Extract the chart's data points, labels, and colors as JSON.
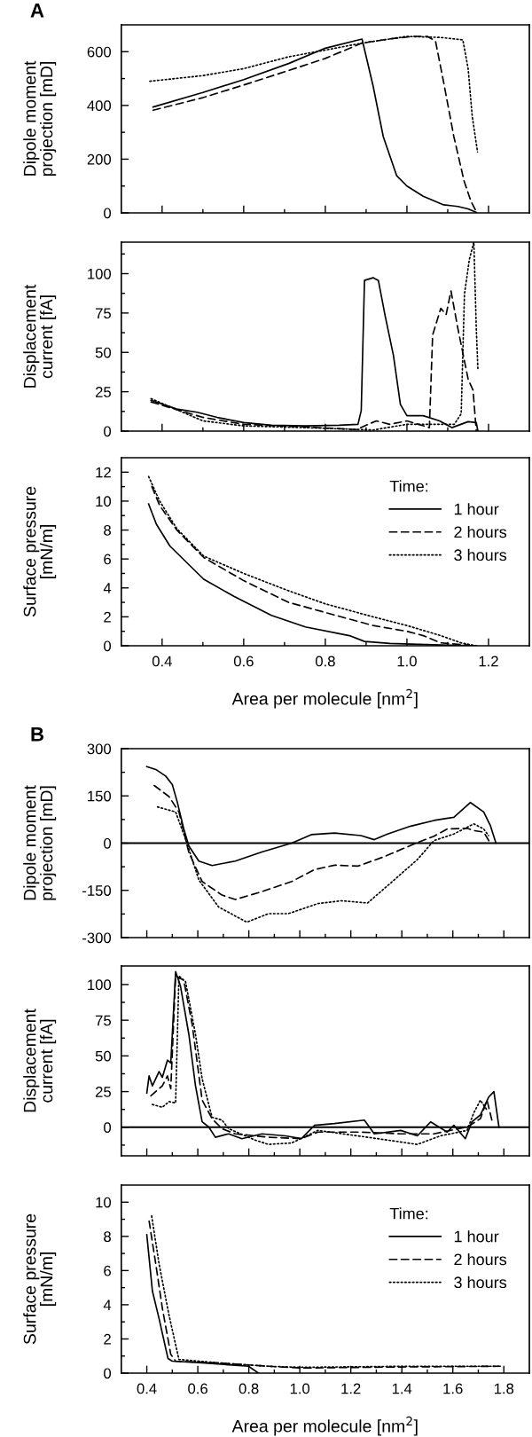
{
  "chart_data": [
    {
      "type": "line",
      "title": "A",
      "ylabel": "Dipole moment\nprojection [mD]",
      "xlim": [
        0.3,
        1.3
      ],
      "xticks": [
        0.4,
        {
          "value": 0.5,
          "label": null
        },
        0.6,
        {
          "value": 0.7,
          "label": null
        },
        0.8,
        {
          "value": 0.9,
          "label": null
        },
        1.0,
        {
          "value": 1.1,
          "label": null
        },
        1.2
      ],
      "ylim": [
        0,
        700
      ],
      "yticks": [
        0,
        {
          "value": 100,
          "label": null
        },
        200,
        {
          "value": 300,
          "label": null
        },
        400,
        {
          "value": 500,
          "label": null
        },
        600
      ],
      "tick_labels": "y",
      "grid": false,
      "legend": false,
      "series": [
        {
          "color": "#000000",
          "line_style": "solid",
          "x": [
            0.378,
            0.5,
            0.6,
            0.71,
            0.8,
            0.89,
            0.917,
            0.942,
            0.975,
            1.0,
            1.04,
            1.09,
            1.125,
            1.15,
            1.17
          ],
          "values": [
            394,
            448,
            496,
            556,
            613,
            647,
            473,
            284,
            138,
            100,
            62,
            30,
            24,
            15,
            2
          ]
        },
        {
          "color": "#000000",
          "line_style": "dashed",
          "x": [
            0.378,
            0.5,
            0.6,
            0.71,
            0.8,
            0.89,
            0.96,
            1.017,
            1.05,
            1.07,
            1.09,
            1.115,
            1.14,
            1.157,
            1.17
          ],
          "values": [
            382,
            429,
            476,
            530,
            575,
            632,
            648,
            657,
            657,
            640,
            486,
            284,
            119,
            43,
            5
          ]
        },
        {
          "color": "#000000",
          "line_style": "dotted",
          "x": [
            0.37,
            0.5,
            0.6,
            0.71,
            0.8,
            0.89,
            1.0,
            1.083,
            1.137,
            1.15,
            1.16,
            1.173
          ],
          "values": [
            490,
            511,
            537,
            581,
            606,
            632,
            657,
            653,
            644,
            537,
            360,
            227
          ]
        }
      ]
    },
    {
      "type": "line",
      "ylabel": "Displacement\ncurrent [fA]",
      "xlim": [
        0.3,
        1.3
      ],
      "xticks": [
        0.4,
        {
          "value": 0.5,
          "label": null
        },
        0.6,
        {
          "value": 0.7,
          "label": null
        },
        0.8,
        {
          "value": 0.9,
          "label": null
        },
        1.0,
        {
          "value": 1.1,
          "label": null
        },
        1.2
      ],
      "ylim": [
        0,
        120
      ],
      "yticks": [
        0,
        {
          "value": 12.5,
          "label": null
        },
        25,
        {
          "value": 37.5,
          "label": null
        },
        50,
        {
          "value": 62.5,
          "label": null
        },
        75,
        {
          "value": 87.5,
          "label": null
        },
        100,
        {
          "value": 112.5,
          "label": null
        }
      ],
      "tick_labels": "y",
      "grid": false,
      "legend": false,
      "series": [
        {
          "color": "#000000",
          "line_style": "solid",
          "x": [
            0.373,
            0.436,
            0.486,
            0.535,
            0.6,
            0.668,
            0.751,
            0.834,
            0.88,
            0.888,
            0.896,
            0.917,
            0.93,
            0.946,
            0.967,
            0.984,
            1.0,
            1.04,
            1.08,
            1.11,
            1.15,
            1.17,
            1.174
          ],
          "values": [
            19.6,
            14,
            12,
            8.7,
            5.4,
            3.7,
            3.3,
            3.7,
            4.3,
            13,
            95.7,
            97.4,
            95.7,
            74,
            48,
            17,
            9.8,
            9.8,
            6.5,
            2.2,
            6,
            5.4,
            0
          ]
        },
        {
          "color": "#000000",
          "line_style": "dashed",
          "x": [
            0.373,
            0.5,
            0.6,
            0.751,
            0.876,
            0.925,
            0.958,
            1.0,
            1.055,
            1.063,
            1.083,
            1.096,
            1.108,
            1.125,
            1.15,
            1.162,
            1.17
          ],
          "values": [
            18.5,
            8.7,
            4.3,
            2.6,
            1,
            6.5,
            4.3,
            6.5,
            2.2,
            61,
            78,
            74,
            89,
            65,
            33,
            26,
            0
          ]
        },
        {
          "color": "#000000",
          "line_style": "dotted",
          "x": [
            0.373,
            0.5,
            0.6,
            0.751,
            0.917,
            1.0,
            1.116,
            1.133,
            1.141,
            1.153,
            1.164,
            1.17,
            1.174
          ],
          "values": [
            20.6,
            6.5,
            3.3,
            2.2,
            0.7,
            4.3,
            4.3,
            11,
            87,
            109,
            120,
            65,
            39
          ]
        }
      ]
    },
    {
      "type": "line",
      "ylabel": "Surface pressure\n[mN/m]",
      "xlabel": "Area per molecule [nm$^{2}$]",
      "xlim": [
        0.3,
        1.3
      ],
      "xticks": [
        0.4,
        {
          "value": 0.5,
          "label": null
        },
        0.6,
        {
          "value": 0.7,
          "label": null
        },
        0.8,
        {
          "value": 0.9,
          "label": null
        },
        {
          "value": 1.0,
          "label": "1.0"
        },
        {
          "value": 1.1,
          "label": null
        },
        1.2
      ],
      "ylim": [
        0,
        13
      ],
      "yticks": [
        0,
        {
          "value": 1,
          "label": null
        },
        2,
        {
          "value": 3,
          "label": null
        },
        4,
        {
          "value": 5,
          "label": null
        },
        6,
        {
          "value": 7,
          "label": null
        },
        8,
        {
          "value": 9,
          "label": null
        },
        10,
        {
          "value": 11,
          "label": null
        },
        12
      ],
      "grid": false,
      "legend": "top right",
      "legend_title": "Time:",
      "series": [
        {
          "name": "1 hour",
          "color": "#000000",
          "line_style": "solid",
          "x": [
            0.367,
            0.386,
            0.419,
            0.502,
            0.577,
            0.668,
            0.751,
            0.859,
            0.896,
            0.958,
            1.083,
            1.17
          ],
          "values": [
            9.8,
            8.4,
            6.9,
            4.6,
            3.4,
            2.1,
            1.3,
            0.7,
            0.3,
            0.16,
            0.05,
            0
          ]
        },
        {
          "name": "2 hours",
          "color": "#000000",
          "line_style": "dashed",
          "x": [
            0.375,
            0.394,
            0.436,
            0.502,
            0.6,
            0.71,
            0.8,
            0.917,
            1.0,
            1.04,
            1.083,
            1.15
          ],
          "values": [
            11.0,
            9.7,
            8,
            6.1,
            4.5,
            3,
            2.3,
            1.4,
            1.0,
            0.7,
            0.2,
            0.05
          ]
        },
        {
          "name": "3 hours",
          "color": "#000000",
          "line_style": "dotted",
          "x": [
            0.367,
            0.394,
            0.436,
            0.502,
            0.6,
            0.71,
            0.8,
            0.917,
            1.0,
            1.083,
            1.133,
            1.17
          ],
          "values": [
            11.7,
            10,
            8.1,
            6.2,
            5,
            3.8,
            2.9,
            2.0,
            1.4,
            0.7,
            0.2,
            0
          ]
        }
      ]
    },
    {
      "type": "line",
      "title": "B",
      "ylabel": "Dipole moment\nprojection [mD]",
      "xlim": [
        0.3,
        1.9
      ],
      "xticks": [
        0.4,
        {
          "value": 0.5,
          "label": null
        },
        0.6,
        {
          "value": 0.7,
          "label": null
        },
        0.8,
        {
          "value": 0.9,
          "label": null
        },
        1.0,
        {
          "value": 1.1,
          "label": null
        },
        1.2,
        {
          "value": 1.3,
          "label": null
        },
        1.4,
        {
          "value": 1.5,
          "label": null
        },
        1.6,
        {
          "value": 1.7,
          "label": null
        },
        1.8
      ],
      "ylim": [
        -300,
        300
      ],
      "yticks": [
        -300,
        {
          "value": -225,
          "label": null
        },
        -150,
        {
          "value": -75,
          "label": null
        },
        0,
        {
          "value": 75,
          "label": null
        },
        150,
        {
          "value": 225,
          "label": null
        },
        300
      ],
      "tick_labels": "y",
      "grid": false,
      "legend": false,
      "ref_lines": [
        {
          "axis": "y",
          "value": 0,
          "color": "#000000",
          "line_style": "solid"
        }
      ],
      "series": [
        {
          "color": "#000000",
          "line_style": "solid",
          "x": [
            0.4,
            0.435,
            0.474,
            0.5,
            0.519,
            0.545,
            0.565,
            0.604,
            0.656,
            0.747,
            0.851,
            0.968,
            1.045,
            1.136,
            1.24,
            1.292,
            1.344,
            1.435,
            1.526,
            1.604,
            1.669,
            1.721,
            1.747,
            1.769
          ],
          "values": [
            243,
            234,
            213,
            186,
            132,
            45,
            -9,
            -57,
            -71,
            -57,
            -28,
            0,
            27,
            32,
            24,
            11,
            29,
            54,
            72,
            82,
            129,
            99,
            56,
            0
          ]
        },
        {
          "color": "#000000",
          "line_style": "dashed",
          "x": [
            0.429,
            0.487,
            0.526,
            0.565,
            0.617,
            0.695,
            0.747,
            0.851,
            0.968,
            1.058,
            1.136,
            1.227,
            1.331,
            1.447,
            1.526,
            1.578,
            1.656,
            1.682,
            1.721,
            1.747
          ],
          "values": [
            183,
            148,
            99,
            -30,
            -122,
            -165,
            -179,
            -154,
            -122,
            -84,
            -70,
            -73,
            -43,
            -3,
            22,
            45,
            47,
            40,
            35,
            0
          ]
        },
        {
          "color": "#000000",
          "line_style": "dotted",
          "x": [
            0.442,
            0.513,
            0.552,
            0.604,
            0.682,
            0.792,
            0.877,
            0.955,
            1.071,
            1.162,
            1.266,
            1.37,
            1.461,
            1.526,
            1.604,
            1.682,
            1.721,
            1.74
          ],
          "values": [
            115,
            99,
            13,
            -117,
            -203,
            -251,
            -224,
            -224,
            -192,
            -183,
            -190,
            -117,
            -52,
            8,
            29,
            61,
            45,
            24
          ]
        }
      ]
    },
    {
      "type": "line",
      "ylabel": "Displacement\ncurrent [fA]",
      "xlim": [
        0.3,
        1.9
      ],
      "xticks": [
        0.4,
        {
          "value": 0.5,
          "label": null
        },
        0.6,
        {
          "value": 0.7,
          "label": null
        },
        0.8,
        {
          "value": 0.9,
          "label": null
        },
        1.0,
        {
          "value": 1.1,
          "label": null
        },
        1.2,
        {
          "value": 1.3,
          "label": null
        },
        1.4,
        {
          "value": 1.5,
          "label": null
        },
        1.6,
        {
          "value": 1.7,
          "label": null
        },
        1.8
      ],
      "ylim": [
        -20,
        113
      ],
      "yticks": [
        {
          "value": -12.5,
          "label": null
        },
        0,
        {
          "value": 12.5,
          "label": null
        },
        25,
        {
          "value": 37.5,
          "label": null
        },
        50,
        {
          "value": 62.5,
          "label": null
        },
        75,
        {
          "value": 87.5,
          "label": null
        },
        100
      ],
      "tick_labels": "y",
      "grid": false,
      "legend": false,
      "ref_lines": [
        {
          "axis": "y",
          "value": 0,
          "color": "#000000",
          "line_style": "solid"
        }
      ],
      "series": [
        {
          "color": "#000000",
          "line_style": "solid",
          "x": [
            0.4,
            0.409,
            0.422,
            0.448,
            0.461,
            0.481,
            0.494,
            0.513,
            0.532,
            0.565,
            0.591,
            0.617,
            0.643,
            0.669,
            0.721,
            0.773,
            0.851,
            0.943,
            1.006,
            1.058,
            1.136,
            1.253,
            1.292,
            1.396,
            1.461,
            1.513,
            1.578,
            1.604,
            1.649,
            1.675,
            1.708,
            1.74,
            1.761,
            1.781
          ],
          "values": [
            24,
            36,
            29,
            39,
            35,
            47,
            45,
            109,
            99,
            65,
            29,
            3.8,
            0.2,
            -7,
            -4.6,
            -8,
            -4.6,
            -6,
            -8,
            1.4,
            2.6,
            5,
            -4.6,
            -2.2,
            -6,
            3.8,
            -3.4,
            1.4,
            -8,
            3.8,
            8.6,
            21,
            25,
            0
          ]
        },
        {
          "color": "#000000",
          "line_style": "dashed",
          "x": [
            0.416,
            0.461,
            0.481,
            0.494,
            0.513,
            0.545,
            0.578,
            0.617,
            0.656,
            0.695,
            0.747,
            0.877,
            1.006,
            1.071,
            1.24,
            1.396,
            1.526,
            1.656,
            1.708,
            1.734,
            1.753
          ],
          "values": [
            22,
            29,
            36,
            27,
            106,
            103,
            72,
            19,
            6,
            -1,
            -4.6,
            -7,
            -8,
            -3.4,
            -3.4,
            -4.6,
            -4.6,
            0.2,
            6,
            19,
            5
          ]
        },
        {
          "color": "#000000",
          "line_style": "dotted",
          "x": [
            0.422,
            0.461,
            0.487,
            0.513,
            0.526,
            0.552,
            0.591,
            0.617,
            0.656,
            0.695,
            0.721,
            0.825,
            0.877,
            0.968,
            1.071,
            1.266,
            1.461,
            1.552,
            1.656,
            1.682,
            1.708,
            1.734
          ],
          "values": [
            16,
            14,
            18,
            17,
            106,
            102,
            65,
            34,
            7,
            5,
            -1,
            -9,
            -12,
            -11,
            -2.2,
            -7,
            -12,
            -6,
            -2.2,
            10,
            19,
            12
          ]
        }
      ]
    },
    {
      "type": "line",
      "ylabel": "Surface pressure\n[mN/m]",
      "xlabel": "Area per molecule [nm$^{2}$]",
      "xlim": [
        0.3,
        1.9
      ],
      "xticks": [
        0.4,
        {
          "value": 0.5,
          "label": null
        },
        0.6,
        {
          "value": 0.7,
          "label": null
        },
        0.8,
        {
          "value": 0.9,
          "label": null
        },
        {
          "value": 1.0,
          "label": "1.0"
        },
        {
          "value": 1.1,
          "label": null
        },
        1.2,
        {
          "value": 1.3,
          "label": null
        },
        1.4,
        {
          "value": 1.5,
          "label": null
        },
        1.6,
        {
          "value": 1.7,
          "label": null
        },
        1.8
      ],
      "ylim": [
        0,
        11
      ],
      "yticks": [
        0,
        {
          "value": 1,
          "label": null
        },
        2,
        {
          "value": 3,
          "label": null
        },
        4,
        {
          "value": 5,
          "label": null
        },
        6,
        {
          "value": 7,
          "label": null
        },
        8,
        {
          "value": 9,
          "label": null
        },
        10
      ],
      "grid": false,
      "legend": "top right",
      "legend_title": "Time:",
      "series": [
        {
          "name": "1 hour",
          "color": "#000000",
          "line_style": "solid",
          "x": [
            0.4,
            0.422,
            0.448,
            0.483,
            0.5,
            0.617,
            0.747,
            0.799,
            0.838
          ],
          "values": [
            8.1,
            4.8,
            3.2,
            0.86,
            0.7,
            0.6,
            0.46,
            0.4,
            0
          ]
        },
        {
          "name": "2 hours",
          "color": "#000000",
          "line_style": "dashed",
          "x": [
            0.409,
            0.435,
            0.461,
            0.494,
            0.513,
            0.682,
            0.877,
            1.006,
            1.396,
            1.786
          ],
          "values": [
            8.9,
            6.4,
            3.8,
            1.1,
            0.7,
            0.6,
            0.4,
            0.3,
            0.36,
            0.4
          ]
        },
        {
          "name": "3 hours",
          "color": "#000000",
          "line_style": "dotted",
          "x": [
            0.419,
            0.448,
            0.487,
            0.526,
            0.682,
            0.877,
            1.006,
            1.396,
            1.786
          ],
          "values": [
            9.2,
            6.4,
            3.4,
            0.8,
            0.6,
            0.4,
            0.34,
            0.4,
            0.4
          ]
        }
      ]
    }
  ]
}
